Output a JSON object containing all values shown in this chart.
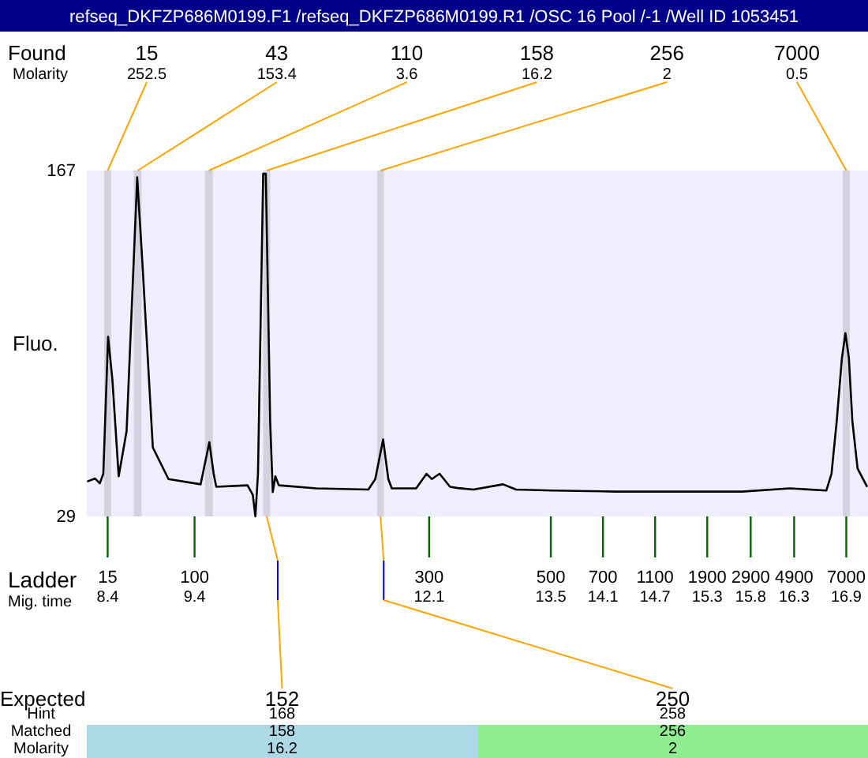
{
  "chart_data": [
    {
      "type": "line",
      "title": "refseq_DKFZP686M0199.F1 /refseq_DKFZP686M0199.R1 /OSC 16 Pool /-1 /Well ID 1053451",
      "ylabel": "Fluo.",
      "xlabel": "Mig. time",
      "xlim": [
        8.16,
        17.15
      ],
      "ylim": [
        29,
        167
      ],
      "yticks": [
        29,
        167
      ],
      "xticks": [
        8.4,
        9.4,
        12.1,
        13.5,
        14.1,
        14.7,
        15.3,
        15.8,
        16.3,
        16.9
      ],
      "grid": false,
      "marker": "none",
      "line_style": "solid",
      "bands": [
        {
          "axis": "x",
          "from": 8.36,
          "to": 8.44,
          "label": "15",
          "color": "#d3d3e0"
        },
        {
          "axis": "x",
          "from": 8.7,
          "to": 8.79,
          "label": "43",
          "color": "#d3d3e0"
        },
        {
          "axis": "x",
          "from": 9.52,
          "to": 9.61,
          "label": "110",
          "color": "#d3d3e0"
        },
        {
          "axis": "x",
          "from": 10.19,
          "to": 10.27,
          "label": "158",
          "color": "#d3d3e0"
        },
        {
          "axis": "x",
          "from": 11.5,
          "to": 11.58,
          "label": "256",
          "color": "#d3d3e0"
        },
        {
          "axis": "x",
          "from": 16.86,
          "to": 16.94,
          "label": "7000",
          "color": "#d3d3e0"
        }
      ],
      "annotations": [
        "Found",
        "Molarity",
        "Ladder",
        "15",
        "100",
        "300",
        "500",
        "700",
        "1100",
        "1900",
        "2900",
        "4900",
        "7000",
        {
          "text": "252.5",
          "x": 8.4,
          "y": 167
        },
        {
          "text": "153.4",
          "x": 8.745,
          "y": 167
        },
        {
          "text": "3.6",
          "x": 9.565,
          "y": 167
        },
        {
          "text": "16.2",
          "x": 10.23,
          "y": 167
        },
        {
          "text": "2",
          "x": 11.54,
          "y": 167
        },
        {
          "text": "0.5",
          "x": 16.9,
          "y": 167
        }
      ],
      "series": [
        {
          "color": "#000000",
          "x": [
            8.164,
            8.255,
            8.31,
            8.35,
            8.405,
            8.454,
            8.527,
            8.618,
            8.74,
            8.8,
            8.92,
            9.1,
            9.47,
            9.57,
            9.62,
            9.65,
            10.01,
            10.07,
            10.1,
            10.13,
            10.19,
            10.22,
            10.27,
            10.3,
            10.33,
            10.37,
            10.8,
            11.4,
            11.48,
            11.57,
            11.63,
            11.67,
            11.95,
            12.07,
            12.13,
            12.22,
            12.34,
            12.43,
            12.61,
            12.95,
            13.1,
            13.52,
            14.25,
            15.7,
            16.25,
            16.67,
            16.73,
            16.79,
            16.85,
            16.89,
            16.93,
            16.97,
            17.03,
            17.14
          ],
          "values": [
            42.9,
            44.1,
            42.2,
            46.0,
            100.7,
            83.8,
            45.0,
            63.0,
            164.3,
            130.0,
            56.5,
            43.9,
            41.8,
            58.6,
            46.0,
            40.8,
            41.4,
            37.6,
            29,
            46.0,
            165.7,
            165.7,
            67.0,
            38.7,
            45.0,
            41.4,
            40.2,
            39.7,
            43.9,
            59.7,
            43.9,
            40.2,
            40.2,
            46.0,
            43.9,
            46.0,
            40.8,
            40.3,
            39.7,
            41.8,
            39.7,
            39.3,
            38.9,
            38.9,
            40.2,
            39.3,
            46.0,
            67.0,
            92.2,
            102.1,
            92.2,
            67.0,
            48.1,
            40.8
          ]
        }
      ]
    },
    {
      "type": "other",
      "xlabel": "Expected",
      "data_labels": true,
      "categories": [
        "152",
        "250"
      ],
      "series": [
        {
          "name": "Hint",
          "values": [
            168,
            258
          ]
        },
        {
          "name": "Matched",
          "colors": [
            "#add8e6",
            "#90ee90"
          ],
          "values": [
            158,
            256
          ]
        },
        {
          "name": "Molarity",
          "colors": [
            "#add8e6",
            "#90ee90"
          ],
          "values": [
            16.2,
            2
          ]
        }
      ]
    }
  ]
}
